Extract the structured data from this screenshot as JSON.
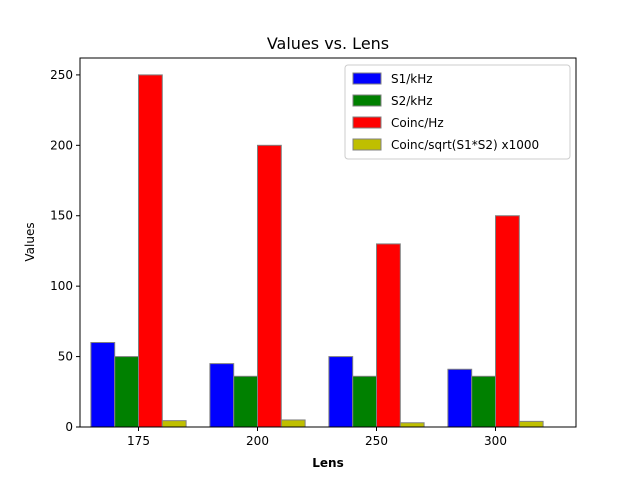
{
  "chart_data": {
    "type": "bar",
    "title": "Values vs. Lens",
    "xlabel": "Lens",
    "ylabel": "Values",
    "categories": [
      "175",
      "200",
      "250",
      "300"
    ],
    "ylim": [
      0,
      262
    ],
    "yticks": [
      0,
      50,
      100,
      150,
      200,
      250
    ],
    "grid": false,
    "legend_position": "top-right",
    "series": [
      {
        "name": "S1/kHz",
        "color": "#0000ff",
        "values": [
          60,
          45,
          50,
          41
        ]
      },
      {
        "name": "S2/kHz",
        "color": "#008000",
        "values": [
          50,
          36,
          36,
          36
        ]
      },
      {
        "name": "Coinc/Hz",
        "color": "#ff0000",
        "values": [
          250,
          200,
          130,
          150
        ]
      },
      {
        "name": "Coinc/sqrt(S1*S2) x1000",
        "color": "#bfbf00",
        "values": [
          4.5,
          5.0,
          3.0,
          4.0
        ]
      }
    ],
    "bar_edge_color": "#808080"
  }
}
